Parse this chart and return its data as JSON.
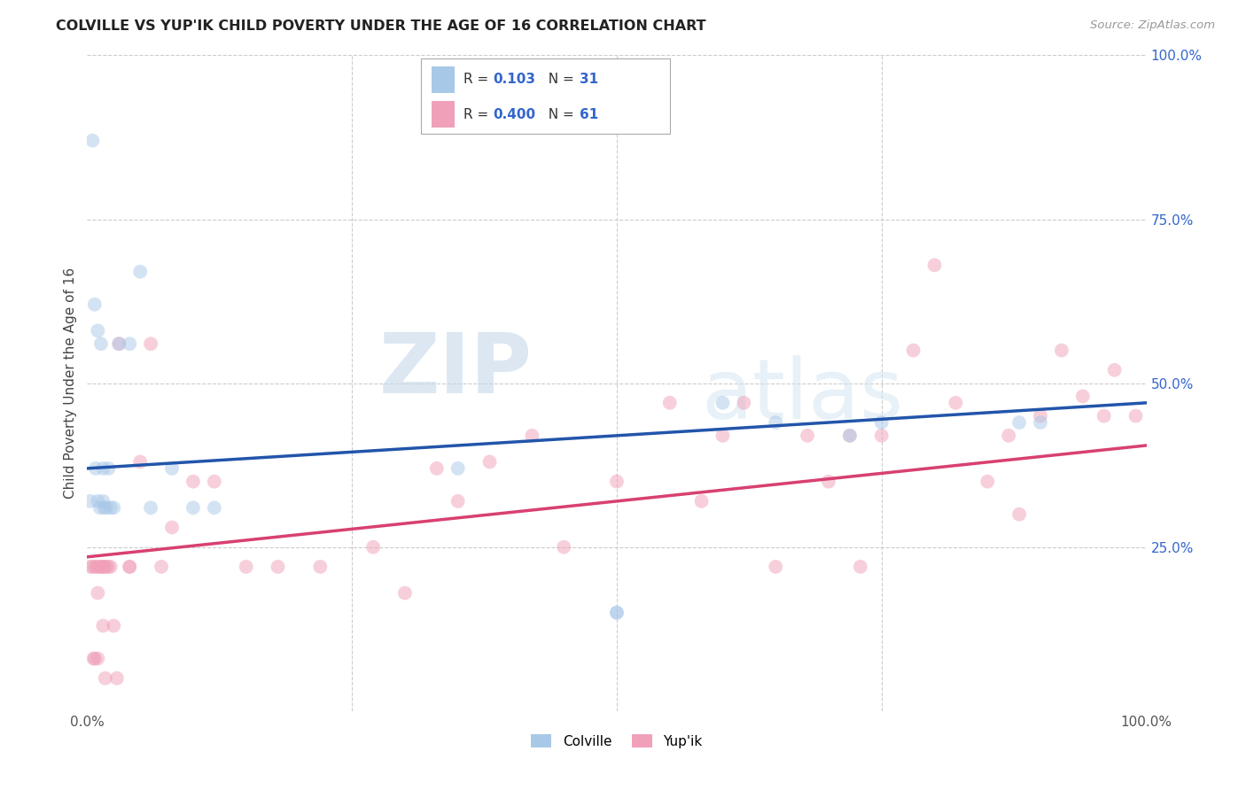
{
  "title": "COLVILLE VS YUP'IK CHILD POVERTY UNDER THE AGE OF 16 CORRELATION CHART",
  "source": "Source: ZipAtlas.com",
  "ylabel": "Child Poverty Under the Age of 16",
  "xmin": 0.0,
  "xmax": 1.0,
  "ymin": 0.0,
  "ymax": 1.0,
  "colville_R": "0.103",
  "colville_N": "31",
  "yupik_R": "0.400",
  "yupik_N": "61",
  "colville_color": "#a8c8e8",
  "yupik_color": "#f0a0b8",
  "colville_line_color": "#2255aa",
  "yupik_line_color": "#d84070",
  "watermark_zip": "ZIP",
  "watermark_atlas": "atlas",
  "colville_x": [
    0.003,
    0.005,
    0.007,
    0.008,
    0.01,
    0.01,
    0.012,
    0.013,
    0.015,
    0.015,
    0.016,
    0.018,
    0.02,
    0.022,
    0.025,
    0.03,
    0.04,
    0.05,
    0.06,
    0.08,
    0.1,
    0.12,
    0.35,
    0.5,
    0.5,
    0.6,
    0.65,
    0.72,
    0.75,
    0.88,
    0.9
  ],
  "colville_y": [
    0.32,
    0.87,
    0.62,
    0.37,
    0.58,
    0.32,
    0.31,
    0.56,
    0.32,
    0.37,
    0.31,
    0.31,
    0.37,
    0.31,
    0.31,
    0.56,
    0.56,
    0.67,
    0.31,
    0.37,
    0.31,
    0.31,
    0.37,
    0.15,
    0.15,
    0.47,
    0.44,
    0.42,
    0.44,
    0.44,
    0.44
  ],
  "yupik_x": [
    0.003,
    0.005,
    0.006,
    0.007,
    0.008,
    0.009,
    0.01,
    0.01,
    0.012,
    0.013,
    0.015,
    0.015,
    0.016,
    0.017,
    0.018,
    0.02,
    0.022,
    0.025,
    0.028,
    0.03,
    0.04,
    0.04,
    0.05,
    0.06,
    0.07,
    0.08,
    0.1,
    0.12,
    0.15,
    0.18,
    0.22,
    0.27,
    0.3,
    0.33,
    0.35,
    0.38,
    0.42,
    0.45,
    0.5,
    0.55,
    0.58,
    0.6,
    0.62,
    0.65,
    0.68,
    0.7,
    0.72,
    0.73,
    0.75,
    0.78,
    0.8,
    0.82,
    0.85,
    0.87,
    0.88,
    0.9,
    0.92,
    0.94,
    0.96,
    0.97,
    0.99
  ],
  "yupik_y": [
    0.22,
    0.22,
    0.08,
    0.08,
    0.22,
    0.22,
    0.18,
    0.08,
    0.22,
    0.22,
    0.13,
    0.22,
    0.22,
    0.05,
    0.22,
    0.22,
    0.22,
    0.13,
    0.05,
    0.56,
    0.22,
    0.22,
    0.38,
    0.56,
    0.22,
    0.28,
    0.35,
    0.35,
    0.22,
    0.22,
    0.22,
    0.25,
    0.18,
    0.37,
    0.32,
    0.38,
    0.42,
    0.25,
    0.35,
    0.47,
    0.32,
    0.42,
    0.47,
    0.22,
    0.42,
    0.35,
    0.42,
    0.22,
    0.42,
    0.55,
    0.68,
    0.47,
    0.35,
    0.42,
    0.3,
    0.45,
    0.55,
    0.48,
    0.45,
    0.52,
    0.45
  ],
  "colville_slope": 0.1,
  "colville_intercept": 0.37,
  "yupik_slope": 0.17,
  "yupik_intercept": 0.235,
  "background_color": "#ffffff",
  "grid_color": "#cccccc",
  "title_color": "#222222",
  "source_color": "#999999",
  "marker_size": 130,
  "marker_alpha": 0.5,
  "right_tick_color": "#3366cc",
  "xtick_color": "#555555"
}
